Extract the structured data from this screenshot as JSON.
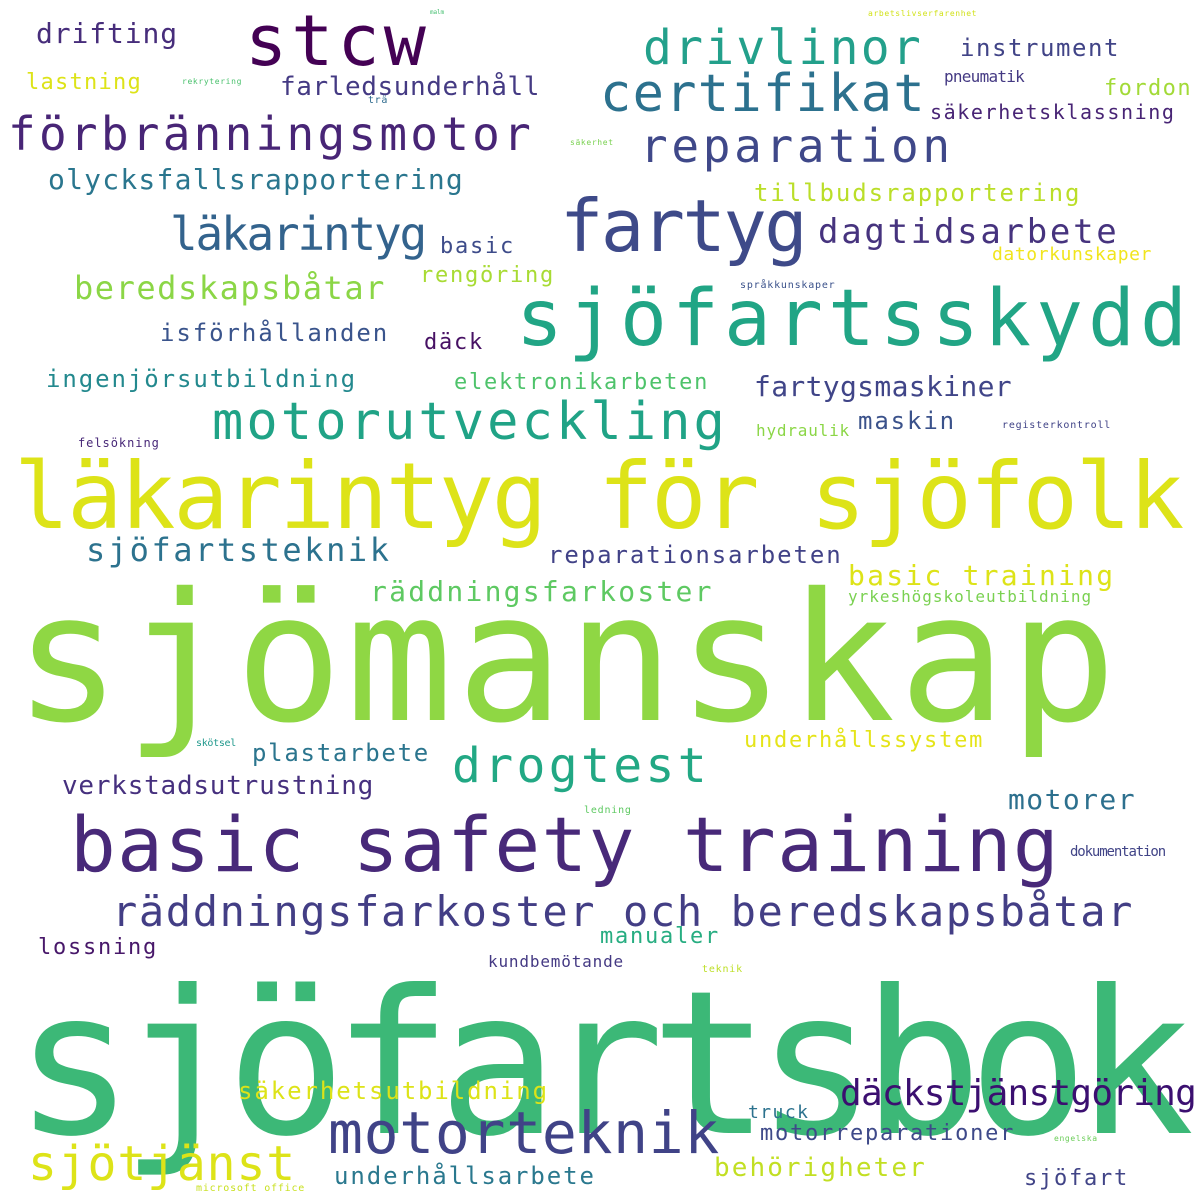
{
  "words": [
    {
      "text": "sjöfartsbok",
      "color": "#3cb877"
    },
    {
      "text": "sjömanskap",
      "color": "#8fd744"
    },
    {
      "text": "läkarintyg för sjöfolk",
      "color": "#dde318"
    },
    {
      "text": "basic safety training",
      "color": "#482979"
    },
    {
      "text": "sjöfartsskydd",
      "color": "#21a585"
    },
    {
      "text": "stcw",
      "color": "#440154"
    },
    {
      "text": "fartyg",
      "color": "#3e4a89"
    },
    {
      "text": "certifikat",
      "color": "#2c718e"
    },
    {
      "text": "drivlinor",
      "color": "#23a08b"
    },
    {
      "text": "förbränningsmotor",
      "color": "#482576"
    },
    {
      "text": "reparation",
      "color": "#3f4889"
    },
    {
      "text": "motorutveckling",
      "color": "#20a386"
    },
    {
      "text": "motorteknik",
      "color": "#404387"
    },
    {
      "text": "drogtest",
      "color": "#22a884"
    },
    {
      "text": "räddningsfarkoster och beredskapsbåtar",
      "color": "#433e85"
    },
    {
      "text": "sjötjänst",
      "color": "#dde318"
    },
    {
      "text": "däckstjänstgöring",
      "color": "#3b0f70"
    },
    {
      "text": "läkarintyg",
      "color": "#33638d"
    },
    {
      "text": "dagtidsarbete",
      "color": "#46337e"
    },
    {
      "text": "drifting",
      "color": "#472d7b"
    },
    {
      "text": "instrument",
      "color": "#414487"
    },
    {
      "text": "farledsunderhåll",
      "color": "#443a83"
    },
    {
      "text": "lastning",
      "color": "#dde318"
    },
    {
      "text": "pneumatik",
      "color": "#443983"
    },
    {
      "text": "fordon",
      "color": "#a2da37"
    },
    {
      "text": "säkerhetsklassning",
      "color": "#482475"
    },
    {
      "text": "olycksfallsrapportering",
      "color": "#2a768e"
    },
    {
      "text": "tillbudsrapportering",
      "color": "#bade28"
    },
    {
      "text": "beredskapsbåtar",
      "color": "#8bd646"
    },
    {
      "text": "basic",
      "color": "#3e4c8a"
    },
    {
      "text": "rengöring",
      "color": "#a8db34"
    },
    {
      "text": "datorkunskaper",
      "color": "#f1e51d"
    },
    {
      "text": "isförhållanden",
      "color": "#3a548c"
    },
    {
      "text": "däck",
      "color": "#471164"
    },
    {
      "text": "ingenjörsutbildning",
      "color": "#23898e"
    },
    {
      "text": "elektronikarbeten",
      "color": "#4ec36b"
    },
    {
      "text": "fartygsmaskiner",
      "color": "#404588"
    },
    {
      "text": "maskin",
      "color": "#3b528b"
    },
    {
      "text": "hydraulik",
      "color": "#8bd646"
    },
    {
      "text": "registerkontroll",
      "color": "#404387"
    },
    {
      "text": "felsökning",
      "color": "#482878"
    },
    {
      "text": "sjöfartsteknik",
      "color": "#2c728e"
    },
    {
      "text": "reparationsarbeten",
      "color": "#414287"
    },
    {
      "text": "basic training",
      "color": "#dde318"
    },
    {
      "text": "räddningsfarkoster",
      "color": "#5ec962"
    },
    {
      "text": "yrkeshögskoleutbildning",
      "color": "#7ad151"
    },
    {
      "text": "plastarbete",
      "color": "#2b758e"
    },
    {
      "text": "underhållssystem",
      "color": "#e5e419"
    },
    {
      "text": "skötsel",
      "color": "#1f988b"
    },
    {
      "text": "verkstadsutrustning",
      "color": "#46307e"
    },
    {
      "text": "motorer",
      "color": "#2d708e"
    },
    {
      "text": "ledning",
      "color": "#5ec962"
    },
    {
      "text": "dokumentation",
      "color": "#414487"
    },
    {
      "text": "lossning",
      "color": "#48186a"
    },
    {
      "text": "manualer",
      "color": "#27ad81"
    },
    {
      "text": "kundbemötande",
      "color": "#443983"
    },
    {
      "text": "teknik",
      "color": "#bddf26"
    },
    {
      "text": "säkerhetsutbildning",
      "color": "#dde318"
    },
    {
      "text": "truck",
      "color": "#2c728e"
    },
    {
      "text": "motorreparationer",
      "color": "#3e4989"
    },
    {
      "text": "engelska",
      "color": "#6ccd5a"
    },
    {
      "text": "underhållsarbete",
      "color": "#2a788e"
    },
    {
      "text": "behörigheter",
      "color": "#c2df23"
    },
    {
      "text": "sjöfart",
      "color": "#414487"
    },
    {
      "text": "microsoft office",
      "color": "#c8e020"
    },
    {
      "text": "rekrytering",
      "color": "#4ac16d"
    },
    {
      "text": "trä",
      "color": "#2f6b8e"
    },
    {
      "text": "säkerhet",
      "color": "#7ad151"
    },
    {
      "text": "språkkunskaper",
      "color": "#3b528b"
    },
    {
      "text": "arbetslivserfarenhet",
      "color": "#d2e21b"
    },
    {
      "text": "malm",
      "color": "#44bf70"
    }
  ]
}
